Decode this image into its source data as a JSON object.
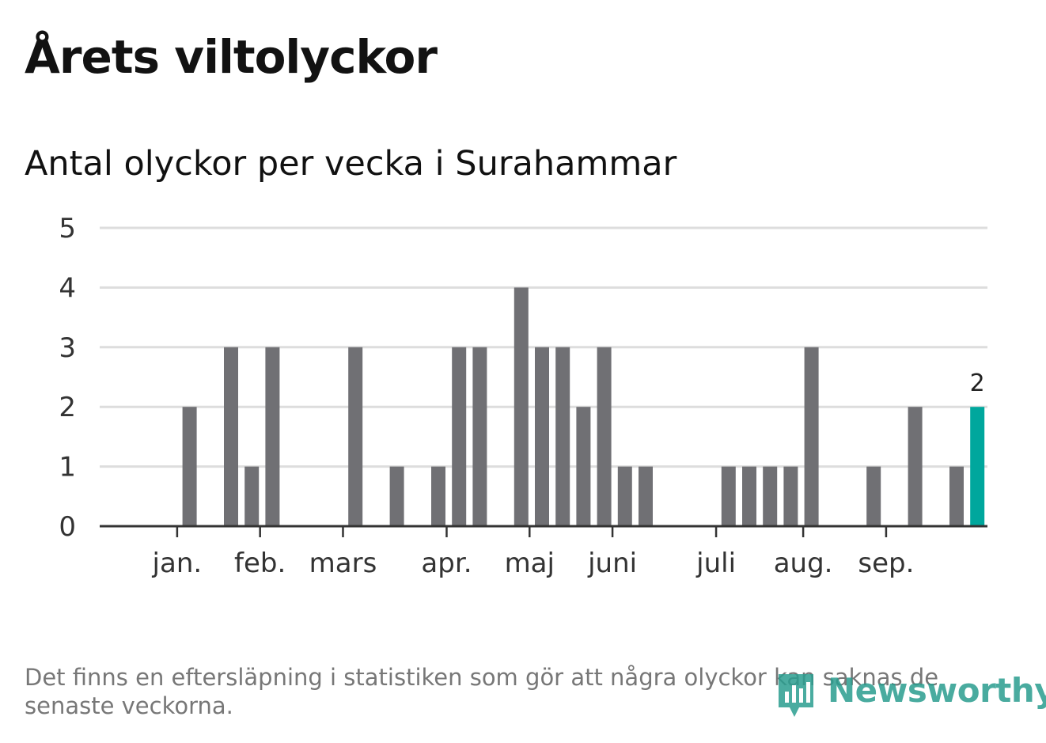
{
  "header": {
    "title": "Årets viltolyckor",
    "subtitle": "Antal olyckor per vecka i Surahammar"
  },
  "colors": {
    "bar": "#707074",
    "highlight": "#00a79d",
    "grid": "#dddddd",
    "axis": "#333333"
  },
  "chart_data": {
    "type": "bar",
    "title": "Antal olyckor per vecka i Surahammar",
    "xlabel": "",
    "ylabel": "",
    "ylim": [
      0,
      5
    ],
    "yticks": [
      0,
      1,
      2,
      3,
      4,
      5
    ],
    "grid": true,
    "x_unit": "week",
    "weeks": [
      1,
      2,
      3,
      4,
      5,
      6,
      7,
      8,
      9,
      10,
      11,
      12,
      13,
      14,
      15,
      16,
      17,
      18,
      19,
      20,
      21,
      22,
      23,
      24,
      25,
      26,
      27,
      28,
      29,
      30,
      31,
      32,
      33,
      34,
      35,
      36,
      37,
      38,
      39,
      40,
      41,
      42
    ],
    "values": [
      0,
      0,
      0,
      2,
      0,
      3,
      1,
      3,
      0,
      0,
      0,
      3,
      0,
      1,
      0,
      1,
      3,
      3,
      0,
      4,
      3,
      3,
      2,
      3,
      1,
      1,
      0,
      0,
      0,
      1,
      1,
      1,
      1,
      3,
      0,
      0,
      1,
      0,
      2,
      0,
      1,
      2
    ],
    "highlight_index": 41,
    "highlight_label": "2",
    "month_ticks": [
      {
        "label": "jan.",
        "week": 3.4
      },
      {
        "label": "feb.",
        "week": 7.4
      },
      {
        "label": "mars",
        "week": 11.4
      },
      {
        "label": "apr.",
        "week": 16.4
      },
      {
        "label": "maj",
        "week": 20.4
      },
      {
        "label": "juni",
        "week": 24.4
      },
      {
        "label": "juli",
        "week": 29.4
      },
      {
        "label": "aug.",
        "week": 33.6
      },
      {
        "label": "sep.",
        "week": 37.6
      }
    ]
  },
  "footer": {
    "note": "Det finns en eftersläpning i statistiken som gör att några olyckor kan saknas de senaste veckorna.",
    "brand": "Newsworthy"
  }
}
